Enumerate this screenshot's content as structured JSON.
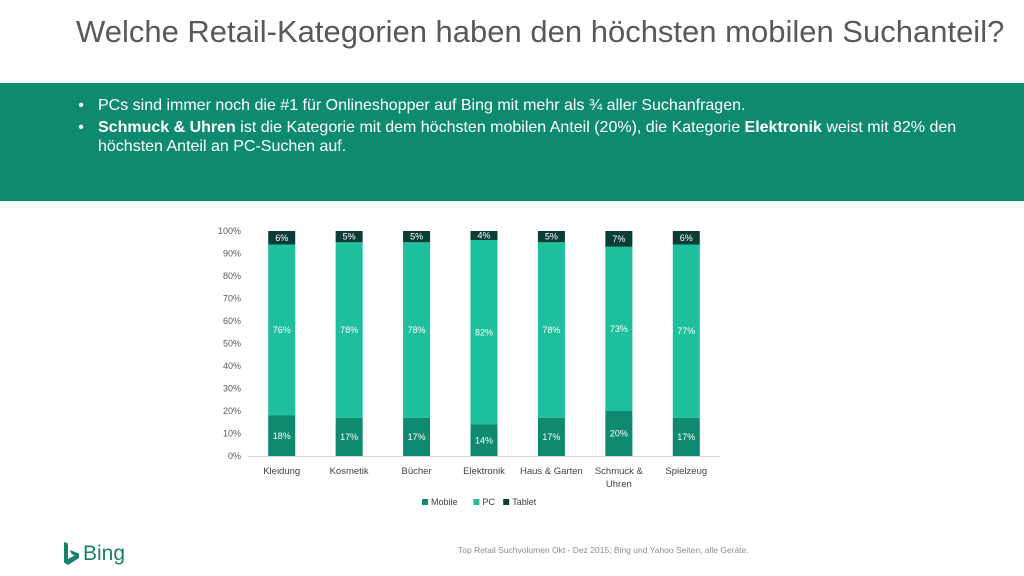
{
  "title": "Welche Retail-Kategorien haben den höchsten mobilen Suchanteil?",
  "bullets": [
    {
      "text_before": "",
      "bold": "",
      "text_after": "PCs sind immer noch die #1 für Onlineshopper auf Bing mit mehr als ¾ aller Suchanfragen."
    },
    {
      "text_before": "",
      "bold": "Schmuck & Uhren",
      "text_middle": " ist die Kategorie mit dem höchsten mobilen Anteil (20%), die Kategorie ",
      "bold2": "Elektronik",
      "text_after": " weist mit 82% den höchsten Anteil an PC-Suchen auf."
    }
  ],
  "bullet_glyph": "•",
  "chart_data": {
    "type": "bar",
    "stacked": true,
    "categories": [
      "Kleidung",
      "Kosmetik",
      "Bücher",
      "Elektronik",
      "Haus & Garten",
      "Schmuck & Uhren",
      "Spielzeug"
    ],
    "series": [
      {
        "name": "Mobile",
        "color": "#0f8a70",
        "values": [
          18,
          17,
          17,
          14,
          17,
          20,
          17
        ]
      },
      {
        "name": "PC",
        "color": "#1dbf9c",
        "values": [
          76,
          78,
          78,
          82,
          78,
          73,
          77
        ]
      },
      {
        "name": "Tablet",
        "color": "#0b3d36",
        "values": [
          6,
          5,
          5,
          4,
          5,
          7,
          6
        ]
      }
    ],
    "yticks": [
      "0%",
      "10%",
      "20%",
      "30%",
      "40%",
      "50%",
      "60%",
      "70%",
      "80%",
      "90%",
      "100%"
    ],
    "ylim": [
      0,
      100
    ],
    "value_suffix": "%",
    "legend_position": "bottom",
    "grid": false
  },
  "logo_text": "Bing",
  "source": "Top Retail Suchvolumen Okt - Dez 2015; Bing und Yahoo Seiten, alle Geräte."
}
